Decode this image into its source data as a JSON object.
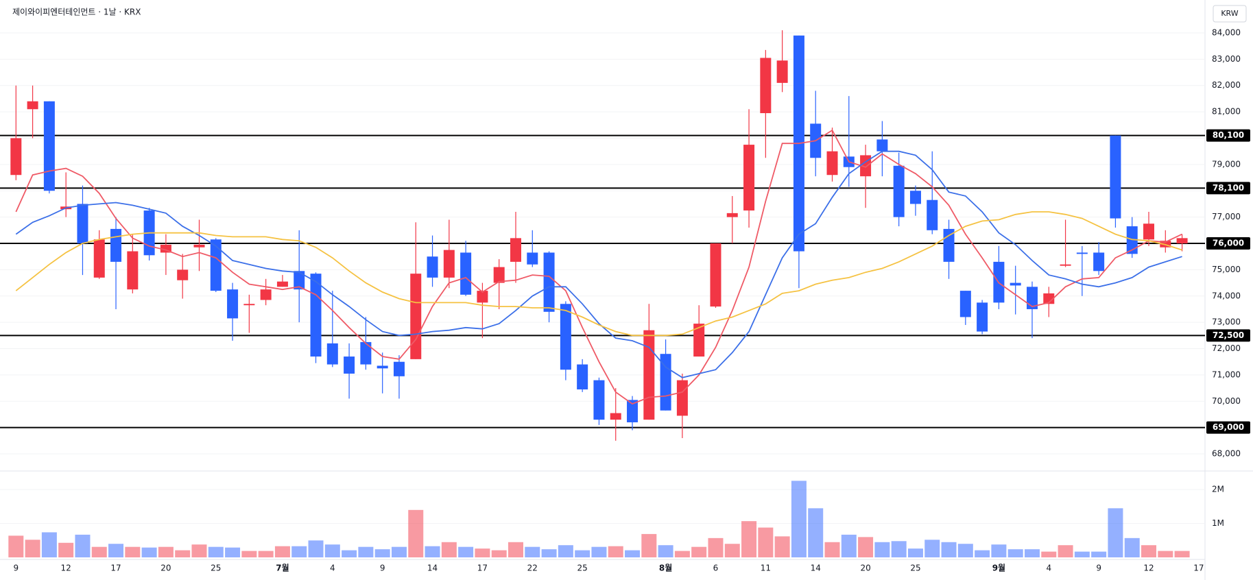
{
  "chart_data": {
    "type": "candlestick",
    "title": "제이와이피엔터테인먼트 · 1날 · KRX",
    "currency": "KRW",
    "up_color": "#f23645",
    "down_color": "#2962ff",
    "categories": [
      "9",
      null,
      null,
      "12",
      null,
      null,
      "17",
      null,
      null,
      "20",
      null,
      null,
      "25",
      null,
      null,
      null,
      "7월",
      null,
      null,
      "4",
      null,
      null,
      "9",
      null,
      null,
      "14",
      null,
      null,
      "17",
      null,
      null,
      "22",
      null,
      null,
      "25",
      null,
      null,
      null,
      null,
      "8월",
      null,
      null,
      "6",
      null,
      null,
      "11",
      null,
      null,
      "14",
      null,
      null,
      "20",
      null,
      null,
      "25",
      null,
      null,
      null,
      null,
      "9월",
      null,
      null,
      "4",
      null,
      null,
      "9",
      null,
      null,
      "12",
      null,
      null,
      "17"
    ],
    "open": [
      78600,
      81100,
      81400,
      77300,
      77500,
      74700,
      76550,
      74250,
      77250,
      75650,
      74600,
      75850,
      76150,
      74250,
      73650,
      73850,
      74350,
      74950,
      74850,
      72200,
      71700,
      72250,
      71350,
      71500,
      71600,
      75500,
      74700,
      75650,
      73750,
      74500,
      75300,
      75650,
      75650,
      73700,
      71400,
      70800,
      69300,
      70050,
      69300,
      71800,
      69450,
      71700,
      73600,
      77000,
      77250,
      80950,
      82100,
      83900,
      80550,
      78600,
      79300,
      78550,
      79950,
      78950,
      78000,
      77650,
      76550,
      74200,
      73750,
      75300,
      74500,
      74350,
      73700,
      75150,
      75650,
      75650,
      80100,
      76650,
      76150,
      75850,
      76000,
      null
    ],
    "high": [
      82000,
      82000,
      81400,
      78700,
      78200,
      76500,
      77000,
      76350,
      77350,
      76350,
      75600,
      76900,
      76200,
      74500,
      74050,
      74650,
      74800,
      76500,
      74900,
      74200,
      72200,
      73200,
      71850,
      71750,
      76800,
      76300,
      76900,
      76100,
      74500,
      75400,
      77200,
      76500,
      75700,
      73800,
      71600,
      70900,
      70500,
      70200,
      73700,
      72350,
      71050,
      73650,
      76000,
      77800,
      81100,
      83350,
      84100,
      83900,
      81800,
      80400,
      81600,
      79750,
      80650,
      79450,
      78200,
      79500,
      76900,
      74200,
      73850,
      75900,
      75150,
      74550,
      74350,
      76900,
      75900,
      76050,
      80100,
      77000,
      77200,
      76500,
      76350,
      null
    ],
    "low": [
      78400,
      80000,
      77900,
      77000,
      74800,
      74650,
      73500,
      74100,
      75350,
      74800,
      73900,
      74950,
      74150,
      72300,
      72600,
      73650,
      74350,
      73000,
      71450,
      71300,
      70100,
      71200,
      70300,
      70100,
      71600,
      74350,
      74300,
      74000,
      72400,
      73500,
      74500,
      75100,
      73000,
      70800,
      70350,
      69100,
      68500,
      68900,
      69300,
      69650,
      68600,
      71700,
      73550,
      76000,
      76600,
      79250,
      81750,
      74300,
      78550,
      78350,
      78150,
      77350,
      78550,
      76650,
      77050,
      76350,
      74650,
      72900,
      72550,
      73500,
      73300,
      72400,
      73200,
      75100,
      74000,
      74800,
      76600,
      75450,
      75900,
      75650,
      75700,
      null
    ],
    "close": [
      80000,
      81400,
      78000,
      77400,
      76000,
      76150,
      75300,
      75700,
      75550,
      75950,
      75000,
      75950,
      74200,
      73150,
      73700,
      74250,
      74550,
      74250,
      71700,
      71400,
      71050,
      71400,
      71250,
      70950,
      74850,
      74700,
      75750,
      74050,
      74200,
      75100,
      76200,
      75200,
      73400,
      71200,
      70450,
      69300,
      69550,
      69200,
      72700,
      69650,
      70800,
      72950,
      76000,
      77150,
      79750,
      83050,
      82950,
      75700,
      79250,
      79500,
      78900,
      79350,
      79500,
      77000,
      77500,
      76500,
      75300,
      73200,
      72650,
      73750,
      74400,
      73500,
      74100,
      75200,
      75600,
      74950,
      76950,
      75600,
      76750,
      76100,
      76200,
      null
    ],
    "series": [
      {
        "color": "#ef5a66",
        "values": [
          77200,
          78600,
          78750,
          78850,
          78550,
          77900,
          76950,
          76200,
          75900,
          75750,
          75500,
          75650,
          75450,
          74900,
          74450,
          74350,
          74250,
          74350,
          74050,
          73450,
          72800,
          72200,
          71700,
          71600,
          72350,
          73600,
          74500,
          74700,
          74150,
          74550,
          74600,
          74800,
          74750,
          74200,
          72800,
          71500,
          70350,
          69900,
          70150,
          70200,
          70350,
          71000,
          72050,
          73450,
          75100,
          77600,
          79800,
          79800,
          79900,
          80300,
          79100,
          78900,
          79400,
          79000,
          78650,
          78150,
          77450,
          76350,
          75450,
          74500,
          74050,
          73600,
          73750,
          74350,
          74650,
          74700,
          75450,
          75750,
          76100,
          76050,
          76350,
          null
        ]
      },
      {
        "color": "#3b6fe8",
        "values": [
          76350,
          76800,
          77050,
          77350,
          77450,
          77500,
          77550,
          77450,
          77300,
          77150,
          76650,
          76300,
          75900,
          75350,
          75200,
          75050,
          74950,
          74900,
          74550,
          74050,
          73600,
          73100,
          72650,
          72500,
          72550,
          72650,
          72700,
          72800,
          72750,
          72950,
          73450,
          74000,
          74350,
          74350,
          73700,
          72950,
          72400,
          72300,
          72050,
          71300,
          70900,
          71050,
          71200,
          71850,
          72650,
          74050,
          75450,
          76350,
          76750,
          77750,
          78650,
          79100,
          79500,
          79500,
          79350,
          78800,
          77950,
          77800,
          77200,
          76400,
          75950,
          75350,
          74800,
          74650,
          74450,
          74350,
          74500,
          74700,
          75100,
          75300,
          75500,
          null
        ]
      },
      {
        "color": "#f5c242",
        "values": [
          74200,
          74700,
          75200,
          75650,
          76000,
          76150,
          76250,
          76350,
          76400,
          76400,
          76400,
          76400,
          76300,
          76250,
          76250,
          76250,
          76150,
          76100,
          75850,
          75450,
          74950,
          74500,
          74150,
          73900,
          73750,
          73750,
          73750,
          73750,
          73650,
          73600,
          73600,
          73550,
          73550,
          73450,
          73200,
          72900,
          72650,
          72500,
          72500,
          72500,
          72550,
          72800,
          73050,
          73200,
          73450,
          73700,
          74100,
          74200,
          74450,
          74600,
          74700,
          74900,
          75050,
          75300,
          75600,
          75900,
          76300,
          76650,
          76850,
          76900,
          77100,
          77200,
          77200,
          77100,
          76950,
          76650,
          76350,
          76150,
          76100,
          75950,
          75750,
          null
        ]
      }
    ],
    "levels": [
      {
        "value": 80100,
        "label": "80,100"
      },
      {
        "value": 78100,
        "label": "78,100"
      },
      {
        "value": 76000,
        "label": "76,000"
      },
      {
        "value": 72500,
        "label": "72,500"
      },
      {
        "value": 69000,
        "label": "69,000"
      }
    ],
    "ylim": [
      67350,
      85250
    ],
    "yticks": [
      {
        "value": 68000,
        "label": "68,000"
      },
      {
        "value": 69000,
        "label": "69,000"
      },
      {
        "value": 70000,
        "label": "70,000"
      },
      {
        "value": 71000,
        "label": "71,000"
      },
      {
        "value": 72000,
        "label": "72,000"
      },
      {
        "value": 73000,
        "label": "73,000"
      },
      {
        "value": 74000,
        "label": "74,000"
      },
      {
        "value": 75000,
        "label": "75,000"
      },
      {
        "value": 76000,
        "label": "76,000"
      },
      {
        "value": 77000,
        "label": "77,000"
      },
      {
        "value": 78000,
        "label": "78,000"
      },
      {
        "value": 79000,
        "label": "79,000"
      },
      {
        "value": 80000,
        "label": "80,000"
      },
      {
        "value": 81000,
        "label": "81,000"
      },
      {
        "value": 82000,
        "label": "82,000"
      },
      {
        "value": 83000,
        "label": "83,000"
      },
      {
        "value": 84000,
        "label": "84,000"
      }
    ],
    "grid": true,
    "volume": {
      "values": [
        640000,
        520000,
        740000,
        430000,
        670000,
        310000,
        400000,
        310000,
        290000,
        310000,
        210000,
        380000,
        310000,
        290000,
        190000,
        190000,
        330000,
        330000,
        500000,
        380000,
        210000,
        310000,
        240000,
        310000,
        1400000,
        330000,
        450000,
        310000,
        260000,
        210000,
        450000,
        310000,
        240000,
        360000,
        210000,
        310000,
        330000,
        210000,
        690000,
        360000,
        190000,
        310000,
        570000,
        400000,
        1070000,
        880000,
        620000,
        2260000,
        1450000,
        450000,
        670000,
        600000,
        450000,
        480000,
        260000,
        520000,
        450000,
        400000,
        210000,
        380000,
        240000,
        240000,
        170000,
        360000,
        170000,
        170000,
        1450000,
        570000,
        360000,
        190000,
        190000,
        null
      ],
      "ylim": [
        0,
        2550000
      ],
      "yticks": [
        {
          "value": 1000000,
          "label": "1M"
        },
        {
          "value": 2000000,
          "label": "2M"
        }
      ]
    }
  }
}
